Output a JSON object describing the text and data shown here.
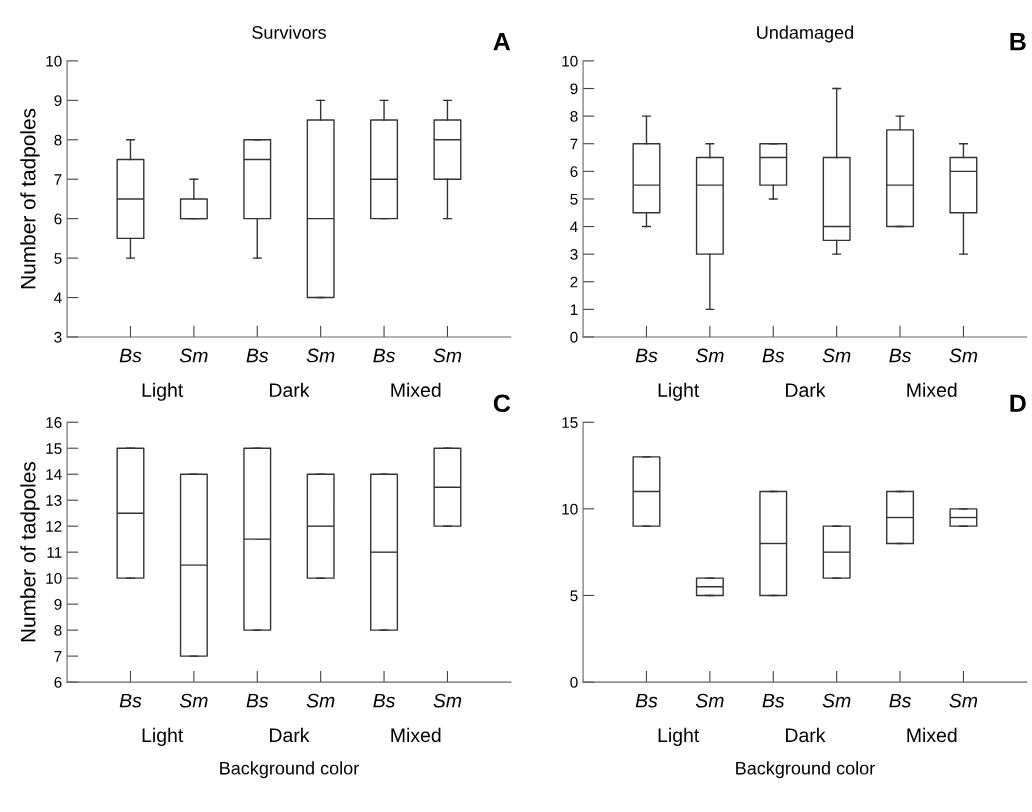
{
  "chart_data": [
    {
      "type": "box",
      "title": "Survivors",
      "ylabel": "Number of tadpoles",
      "categories": [
        "Bs",
        "Sm",
        "Bs",
        "Sm",
        "Bs",
        "Sm"
      ],
      "annotations": [
        "A",
        "Light",
        "Dark",
        "Mixed"
      ],
      "ylim": [
        3,
        10
      ],
      "yticks": [
        3,
        4,
        5,
        6,
        7,
        8,
        9,
        10
      ],
      "color": "#333333",
      "boxes": [
        {
          "low": 5,
          "q1": 5.5,
          "median": 6.5,
          "q3": 7.5,
          "high": 8
        },
        {
          "low": 6,
          "q1": 6,
          "median": 6,
          "q3": 6.5,
          "high": 7
        },
        {
          "low": 5,
          "q1": 6,
          "median": 7.5,
          "q3": 8,
          "high": 8
        },
        {
          "low": 4,
          "q1": 4,
          "median": 6,
          "q3": 8.5,
          "high": 9
        },
        {
          "low": 6,
          "q1": 6,
          "median": 7,
          "q3": 8.5,
          "high": 9
        },
        {
          "low": 6,
          "q1": 7,
          "median": 8,
          "q3": 8.5,
          "high": 9
        }
      ]
    },
    {
      "type": "box",
      "title": "Undamaged",
      "categories": [
        "Bs",
        "Sm",
        "Bs",
        "Sm",
        "Bs",
        "Sm"
      ],
      "annotations": [
        "B",
        "Light",
        "Dark",
        "Mixed"
      ],
      "ylim": [
        0,
        10
      ],
      "yticks": [
        0,
        1,
        2,
        3,
        4,
        5,
        6,
        7,
        8,
        9,
        10
      ],
      "color": "#333333",
      "boxes": [
        {
          "low": 4,
          "q1": 4.5,
          "median": 5.5,
          "q3": 7,
          "high": 8
        },
        {
          "low": 1,
          "q1": 3,
          "median": 5.5,
          "q3": 6.5,
          "high": 7
        },
        {
          "low": 5,
          "q1": 5.5,
          "median": 6.5,
          "q3": 7,
          "high": 7
        },
        {
          "low": 3,
          "q1": 3.5,
          "median": 4,
          "q3": 6.5,
          "high": 9
        },
        {
          "low": 4,
          "q1": 4,
          "median": 5.5,
          "q3": 7.5,
          "high": 8
        },
        {
          "low": 3,
          "q1": 4.5,
          "median": 6,
          "q3": 6.5,
          "high": 7
        }
      ]
    },
    {
      "type": "box",
      "ylabel": "Number of tadpoles",
      "xlabel": "Background color",
      "categories": [
        "Bs",
        "Sm",
        "Bs",
        "Sm",
        "Bs",
        "Sm"
      ],
      "annotations": [
        "C",
        "Light",
        "Dark",
        "Mixed"
      ],
      "ylim": [
        6,
        16
      ],
      "yticks": [
        6,
        7,
        8,
        9,
        10,
        11,
        12,
        13,
        14,
        15,
        16
      ],
      "color": "#333333",
      "boxes": [
        {
          "low": 10,
          "q1": 10,
          "median": 12.5,
          "q3": 15,
          "high": 15
        },
        {
          "low": 7,
          "q1": 7,
          "median": 10.5,
          "q3": 14,
          "high": 14
        },
        {
          "low": 8,
          "q1": 8,
          "median": 11.5,
          "q3": 15,
          "high": 15
        },
        {
          "low": 10,
          "q1": 10,
          "median": 12,
          "q3": 14,
          "high": 14
        },
        {
          "low": 8,
          "q1": 8,
          "median": 11,
          "q3": 14,
          "high": 14
        },
        {
          "low": 12,
          "q1": 12,
          "median": 13.5,
          "q3": 15,
          "high": 15
        }
      ]
    },
    {
      "type": "box",
      "xlabel": "Background color",
      "categories": [
        "Bs",
        "Sm",
        "Bs",
        "Sm",
        "Bs",
        "Sm"
      ],
      "annotations": [
        "D",
        "Light",
        "Dark",
        "Mixed"
      ],
      "ylim": [
        0,
        15
      ],
      "yticks": [
        0,
        5,
        10,
        15
      ],
      "color": "#333333",
      "boxes": [
        {
          "low": 9,
          "q1": 9,
          "median": 11,
          "q3": 13,
          "high": 13
        },
        {
          "low": 5,
          "q1": 5,
          "median": 5.5,
          "q3": 6,
          "high": 6
        },
        {
          "low": 5,
          "q1": 5,
          "median": 8,
          "q3": 11,
          "high": 11
        },
        {
          "low": 6,
          "q1": 6,
          "median": 7.5,
          "q3": 9,
          "high": 9
        },
        {
          "low": 8,
          "q1": 8,
          "median": 9.5,
          "q3": 11,
          "high": 11
        },
        {
          "low": 9,
          "q1": 9,
          "median": 9.5,
          "q3": 10,
          "high": 10
        }
      ]
    }
  ]
}
